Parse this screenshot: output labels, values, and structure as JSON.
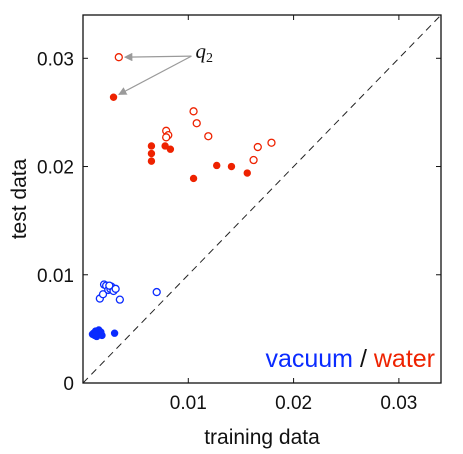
{
  "chart_data": {
    "type": "scatter",
    "title": "",
    "xlabel": "training data",
    "ylabel": "test data",
    "xlim": [
      0,
      0.034
    ],
    "ylim": [
      0,
      0.034
    ],
    "xticks": [
      0.01,
      0.02,
      0.03
    ],
    "xtick_labels": [
      "0.01",
      "0.02",
      "0.03"
    ],
    "yticks": [
      0,
      0.01,
      0.02,
      0.03
    ],
    "ytick_labels": [
      "0",
      "0.01",
      "0.02",
      "0.03"
    ],
    "grid": false,
    "reference_line": "y = x (dashed)",
    "legend": {
      "placement": "bottom-right",
      "entries": [
        {
          "label": "vacuum",
          "color": "#0a2bff"
        },
        {
          "label": "/",
          "color": "#111111"
        },
        {
          "label": "water",
          "color": "#ee2200"
        }
      ]
    },
    "annotation": {
      "label": "q",
      "subscript": "2",
      "targets": [
        {
          "x": 0.0034,
          "y": 0.0301
        },
        {
          "x": 0.0029,
          "y": 0.0264
        }
      ]
    },
    "series": [
      {
        "color": "#0a2bff",
        "marker": "filled-circle",
        "points": [
          [
            0.0009,
            0.0045
          ],
          [
            0.001,
            0.0046
          ],
          [
            0.0011,
            0.0044
          ],
          [
            0.0012,
            0.0048
          ],
          [
            0.0013,
            0.0043
          ],
          [
            0.0014,
            0.0046
          ],
          [
            0.0015,
            0.0049
          ],
          [
            0.0016,
            0.0045
          ],
          [
            0.0017,
            0.0047
          ],
          [
            0.0018,
            0.0044
          ],
          [
            0.0012,
            0.0045
          ],
          [
            0.003,
            0.0046
          ]
        ]
      },
      {
        "color": "#0a2bff",
        "marker": "open-circle",
        "points": [
          [
            0.0016,
            0.0078
          ],
          [
            0.0019,
            0.0082
          ],
          [
            0.002,
            0.0091
          ],
          [
            0.0022,
            0.009
          ],
          [
            0.0024,
            0.0086
          ],
          [
            0.0026,
            0.0087
          ],
          [
            0.0027,
            0.0089
          ],
          [
            0.0029,
            0.0085
          ],
          [
            0.0031,
            0.0087
          ],
          [
            0.0035,
            0.0077
          ],
          [
            0.0025,
            0.009
          ],
          [
            0.007,
            0.0084
          ]
        ]
      },
      {
        "color": "#ee2200",
        "marker": "filled-circle",
        "points": [
          [
            0.0029,
            0.0264
          ],
          [
            0.0065,
            0.0219
          ],
          [
            0.0065,
            0.0212
          ],
          [
            0.0065,
            0.0205
          ],
          [
            0.0078,
            0.0219
          ],
          [
            0.0083,
            0.0216
          ],
          [
            0.0105,
            0.0189
          ],
          [
            0.0127,
            0.0201
          ],
          [
            0.0141,
            0.02
          ],
          [
            0.0156,
            0.0194
          ]
        ]
      },
      {
        "color": "#ee2200",
        "marker": "open-circle",
        "points": [
          [
            0.0034,
            0.0301
          ],
          [
            0.0079,
            0.0233
          ],
          [
            0.0081,
            0.0229
          ],
          [
            0.0079,
            0.0227
          ],
          [
            0.0105,
            0.0251
          ],
          [
            0.0108,
            0.024
          ],
          [
            0.0119,
            0.0228
          ],
          [
            0.0162,
            0.0206
          ],
          [
            0.0166,
            0.0218
          ],
          [
            0.0179,
            0.0222
          ]
        ]
      }
    ]
  }
}
